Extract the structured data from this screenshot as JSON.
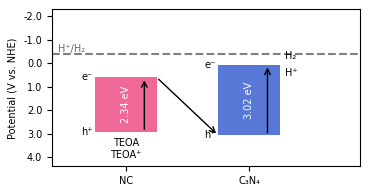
{
  "chart_data": {
    "type": "bar",
    "categories": [
      "NC",
      "C₃N₄"
    ],
    "base": [
      0.6,
      0.06
    ],
    "values": [
      2.34,
      3.02
    ],
    "value_labels": [
      "2.34 eV",
      "3.02 eV"
    ],
    "data_labels": true,
    "colors": [
      "#f06898",
      "#5878d8"
    ],
    "low_labels": [
      "e⁻",
      "e⁻"
    ],
    "high_labels": [
      "h⁺",
      "h⁺"
    ],
    "notes": [
      [
        "TEOA",
        "TEOA⁺"
      ],
      [
        "H₂",
        "H⁺"
      ]
    ],
    "reference_line": {
      "value": -0.41,
      "label": "H⁺/H₂"
    },
    "y_label": "Potential (V vs. NHE)",
    "ylim": [
      4.4,
      -2.3
    ],
    "yticks": [
      -2.0,
      -1.0,
      0.0,
      1.0,
      2.0,
      3.0,
      4.0
    ],
    "grid": false
  }
}
